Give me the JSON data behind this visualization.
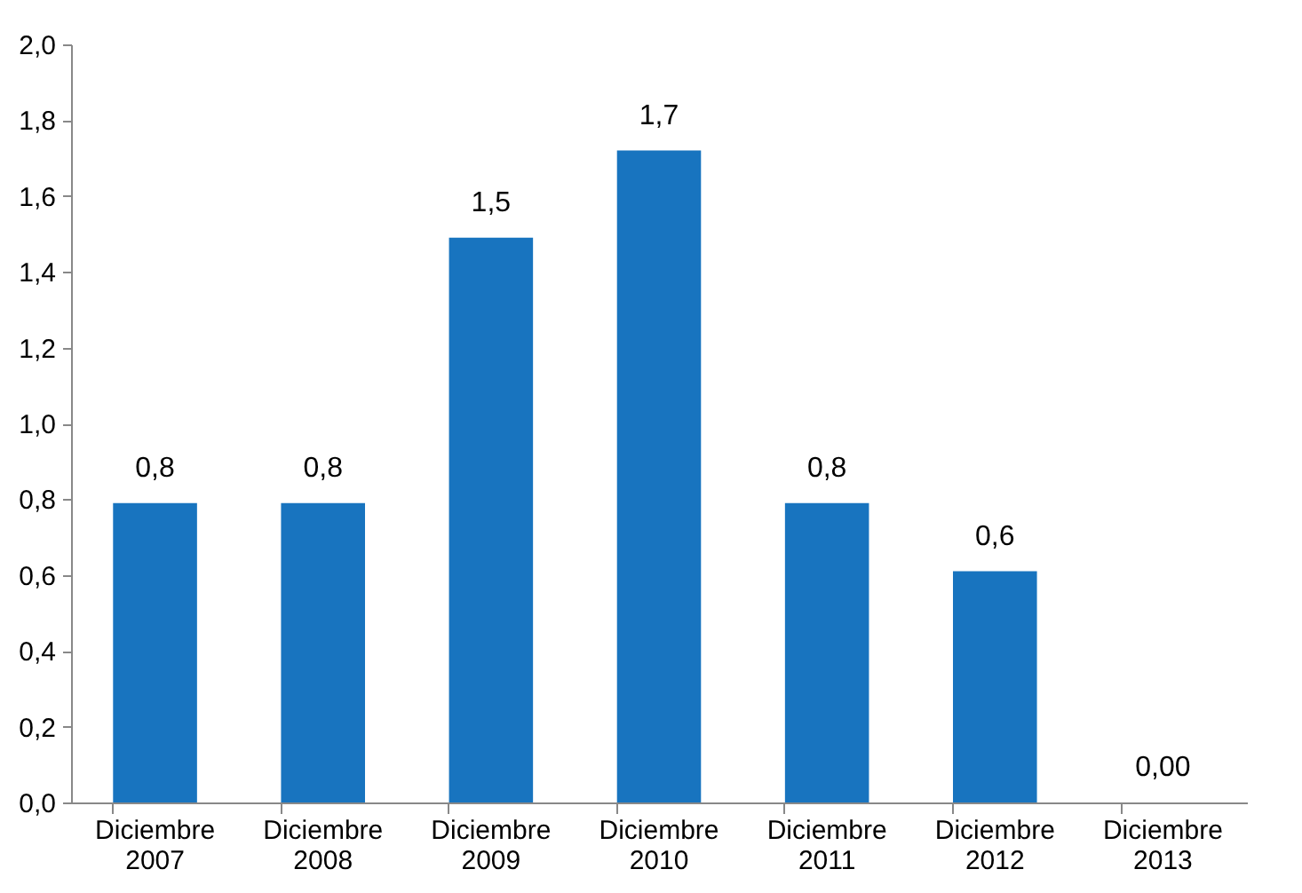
{
  "chart_data": {
    "type": "bar",
    "categories": [
      "Diciembre 2007",
      "Diciembre 2008",
      "Diciembre 2009",
      "Diciembre 2010",
      "Diciembre 2011",
      "Diciembre 2012",
      "Diciembre 2013"
    ],
    "values": [
      0.79,
      0.79,
      1.49,
      1.72,
      0.79,
      0.61,
      0
    ],
    "value_labels": [
      "0,8",
      "0,8",
      "1,5",
      "1,7",
      "0,8",
      "0,6",
      "0,00"
    ],
    "color": "#1874bf",
    "ylim": [
      0,
      2
    ],
    "yticks": [
      {
        "value": 0,
        "label": "0,0"
      },
      {
        "value": 0.2,
        "label": "0,2"
      },
      {
        "value": 0.4,
        "label": "0,4"
      },
      {
        "value": 0.6,
        "label": "0,6"
      },
      {
        "value": 0.8,
        "label": "0,8"
      },
      {
        "value": 1,
        "label": "1,0"
      },
      {
        "value": 1.2,
        "label": "1,2"
      },
      {
        "value": 1.4,
        "label": "1,4"
      },
      {
        "value": 1.6,
        "label": "1,6"
      },
      {
        "value": 1.8,
        "label": "1,8"
      },
      {
        "value": 2,
        "label": "2,0"
      }
    ],
    "grid": false
  }
}
